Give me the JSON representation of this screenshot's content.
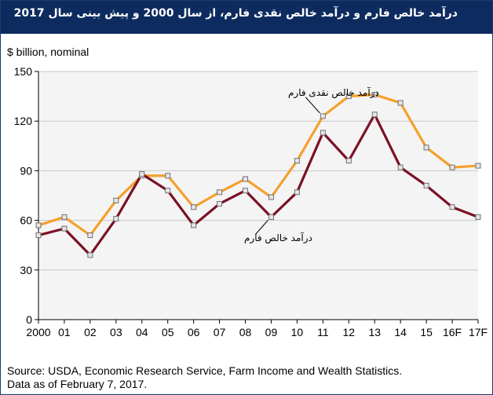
{
  "header": {
    "title": "درآمد خالص فارم و درآمد خالص نقدی فارم، از سال 2000 و پیش بینی سال 2017"
  },
  "footer": {
    "source_line1": "Source: USDA, Economic Research Service, Farm Income and Wealth Statistics.",
    "source_line2": "Data as of February 7, 2017."
  },
  "chart_data": {
    "type": "line",
    "title": "درآمد خالص فارم و درآمد خالص نقدی فارم، از سال 2000 و پیش بینی سال 2017",
    "ylabel": "$ billion, nominal",
    "xlabel": "",
    "ylim": [
      0,
      150
    ],
    "yticks": [
      "0",
      "30",
      "60",
      "90",
      "120",
      "150"
    ],
    "categories": [
      "2000",
      "01",
      "02",
      "03",
      "04",
      "05",
      "06",
      "07",
      "08",
      "09",
      "10",
      "11",
      "12",
      "13",
      "14",
      "15",
      "16F",
      "17F"
    ],
    "grid": true,
    "series": [
      {
        "name": "درآمد خالص نقدی فارم",
        "color": "#f5a02c",
        "values": [
          57,
          62,
          51,
          72,
          87,
          87,
          68,
          77,
          85,
          74,
          96,
          123,
          135,
          136,
          131,
          104,
          92,
          93
        ]
      },
      {
        "name": "درآمد خالص فارم",
        "color": "#7b1124",
        "values": [
          51,
          55,
          39,
          61,
          88,
          78,
          57,
          70,
          78,
          62,
          77,
          113,
          96,
          124,
          92,
          81,
          68,
          62
        ]
      }
    ]
  }
}
